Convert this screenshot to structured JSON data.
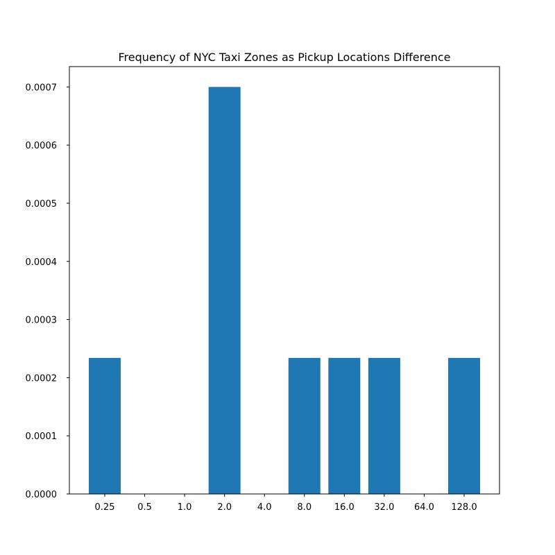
{
  "chart_data": {
    "type": "bar",
    "title": "Frequency of NYC Taxi Zones as Pickup Locations Difference",
    "xlabel": "",
    "ylabel": "",
    "categories": [
      "0.25",
      "0.5",
      "1.0",
      "2.0",
      "4.0",
      "8.0",
      "16.0",
      "32.0",
      "64.0",
      "128.0"
    ],
    "values": [
      0.000234,
      0,
      0,
      0.0007,
      0,
      0.000234,
      0.000234,
      0.000234,
      0,
      0.000234
    ],
    "ylim": [
      0,
      0.000735
    ],
    "yticks": [
      "0.0000",
      "0.0001",
      "0.0002",
      "0.0003",
      "0.0004",
      "0.0005",
      "0.0006",
      "0.0007"
    ],
    "ytick_values": [
      0,
      0.0001,
      0.0002,
      0.0003,
      0.0004,
      0.0005,
      0.0006,
      0.0007
    ],
    "bar_color": "#1f77b4",
    "grid": false,
    "legend": "none"
  }
}
